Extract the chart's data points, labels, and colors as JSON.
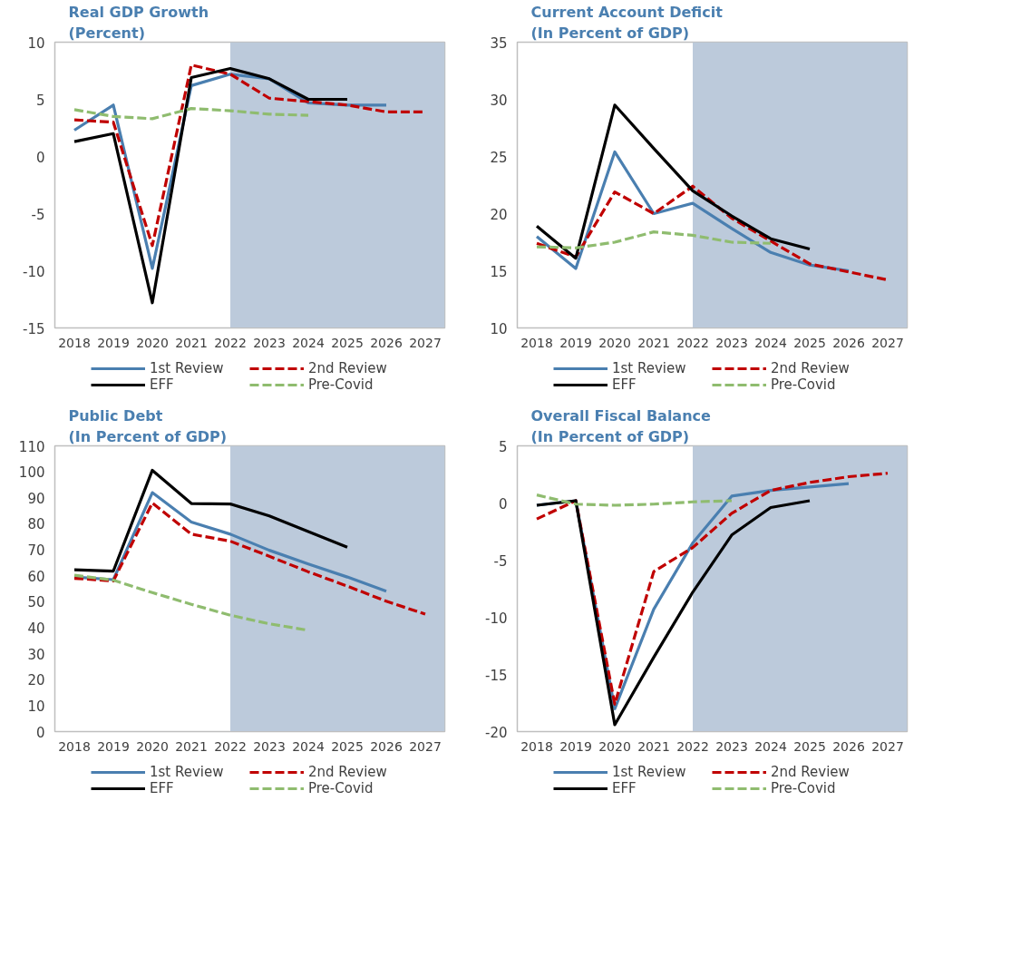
{
  "chart_data": [
    {
      "type": "line",
      "title": "Real GDP Growth",
      "subtitle": "(Percent)",
      "x": [
        2018,
        2019,
        2020,
        2021,
        2022,
        2023,
        2024,
        2025,
        2026,
        2027
      ],
      "xlim": [
        2017.5,
        2027.5
      ],
      "xticks": [
        2018,
        2019,
        2020,
        2021,
        2022,
        2023,
        2024,
        2025,
        2026,
        2027
      ],
      "ylim": [
        -15,
        10
      ],
      "yticks": [
        -15,
        -10,
        -5,
        0,
        5,
        10
      ],
      "grid": false,
      "legend": "bottom",
      "bands": [
        {
          "axis": "x",
          "from": 2022,
          "to": 2027.5,
          "color": "#bccadb"
        }
      ],
      "series": [
        {
          "name": "1st Review",
          "color": "#4a7fb0",
          "line_style": "solid",
          "values": [
            2.3,
            4.5,
            -9.8,
            6.2,
            7.2,
            6.8,
            4.7,
            4.5,
            4.5,
            null
          ]
        },
        {
          "name": "2nd Review",
          "color": "#c00000",
          "line_style": "dashed",
          "values": [
            3.2,
            3.0,
            -7.8,
            8.0,
            7.2,
            5.1,
            4.8,
            4.5,
            3.9,
            3.9
          ]
        },
        {
          "name": "EFF",
          "color": "#000000",
          "line_style": "solid",
          "values": [
            1.3,
            2.0,
            -12.8,
            6.9,
            7.7,
            6.8,
            5.0,
            5.0,
            null,
            null
          ]
        },
        {
          "name": "Pre-Covid",
          "color": "#8fbc6f",
          "line_style": "dashed",
          "values": [
            4.1,
            3.5,
            3.3,
            4.2,
            4.0,
            3.7,
            3.6,
            null,
            null,
            null
          ]
        }
      ]
    },
    {
      "type": "line",
      "title": "Current Account Deficit",
      "subtitle": "(In Percent of GDP)",
      "x": [
        2018,
        2019,
        2020,
        2021,
        2022,
        2023,
        2024,
        2025,
        2026,
        2027
      ],
      "xlim": [
        2017.5,
        2027.5
      ],
      "xticks": [
        2018,
        2019,
        2020,
        2021,
        2022,
        2023,
        2024,
        2025,
        2026,
        2027
      ],
      "ylim": [
        10,
        35
      ],
      "yticks": [
        10,
        15,
        20,
        25,
        30,
        35
      ],
      "grid": false,
      "legend": "bottom",
      "bands": [
        {
          "axis": "x",
          "from": 2022,
          "to": 2027.5,
          "color": "#bccadb"
        }
      ],
      "series": [
        {
          "name": "1st Review",
          "color": "#4a7fb0",
          "line_style": "solid",
          "values": [
            18.0,
            15.2,
            25.4,
            20.0,
            20.9,
            18.7,
            16.6,
            15.5,
            15.0,
            null
          ]
        },
        {
          "name": "2nd Review",
          "color": "#c00000",
          "line_style": "dashed",
          "values": [
            17.4,
            16.2,
            21.9,
            20.0,
            22.4,
            19.6,
            17.6,
            15.6,
            14.9,
            14.2
          ]
        },
        {
          "name": "EFF",
          "color": "#000000",
          "line_style": "solid",
          "values": [
            18.9,
            16.1,
            29.5,
            25.7,
            22.0,
            19.8,
            17.8,
            16.9,
            null,
            null
          ]
        },
        {
          "name": "Pre-Covid",
          "color": "#8fbc6f",
          "line_style": "dashed",
          "values": [
            17.1,
            17.0,
            17.5,
            18.4,
            18.1,
            17.5,
            17.4,
            null,
            null,
            null
          ]
        }
      ]
    },
    {
      "type": "line",
      "title": "Public Debt",
      "subtitle": "(In Percent of GDP)",
      "x": [
        2018,
        2019,
        2020,
        2021,
        2022,
        2023,
        2024,
        2025,
        2026,
        2027
      ],
      "xlim": [
        2017.5,
        2027.5
      ],
      "xticks": [
        2018,
        2019,
        2020,
        2021,
        2022,
        2023,
        2024,
        2025,
        2026,
        2027
      ],
      "ylim": [
        0,
        110
      ],
      "yticks": [
        0,
        10,
        20,
        30,
        40,
        50,
        60,
        70,
        80,
        90,
        100,
        110
      ],
      "grid": false,
      "legend": "bottom",
      "bands": [
        {
          "axis": "x",
          "from": 2022,
          "to": 2027.5,
          "color": "#bccadb"
        }
      ],
      "series": [
        {
          "name": "1st Review",
          "color": "#4a7fb0",
          "line_style": "solid",
          "values": [
            59.5,
            58.5,
            92,
            80.7,
            76,
            69.8,
            64.5,
            59.5,
            54,
            null
          ]
        },
        {
          "name": "2nd Review",
          "color": "#c00000",
          "line_style": "dashed",
          "values": [
            59,
            58,
            88,
            76,
            73.3,
            67.5,
            61.5,
            56,
            50.2,
            45.2
          ]
        },
        {
          "name": "EFF",
          "color": "#000000",
          "line_style": "solid",
          "values": [
            62.3,
            61.8,
            100.6,
            87.8,
            87.6,
            83,
            77,
            71,
            null,
            null
          ]
        },
        {
          "name": "Pre-Covid",
          "color": "#8fbc6f",
          "line_style": "dashed",
          "values": [
            60.2,
            58.3,
            53.5,
            49,
            44.8,
            41.5,
            39,
            null,
            null,
            null
          ]
        }
      ]
    },
    {
      "type": "line",
      "title": "Overall Fiscal Balance",
      "subtitle": "(In Percent of GDP)",
      "x": [
        2018,
        2019,
        2020,
        2021,
        2022,
        2023,
        2024,
        2025,
        2026,
        2027
      ],
      "xlim": [
        2017.5,
        2027.5
      ],
      "xticks": [
        2018,
        2019,
        2020,
        2021,
        2022,
        2023,
        2024,
        2025,
        2026,
        2027
      ],
      "ylim": [
        -20,
        5
      ],
      "yticks": [
        -20,
        -15,
        -10,
        -5,
        0,
        5
      ],
      "grid": false,
      "legend": "bottom",
      "bands": [
        {
          "axis": "x",
          "from": 2022,
          "to": 2027.5,
          "color": "#bccadb"
        }
      ],
      "series": [
        {
          "name": "1st Review",
          "color": "#4a7fb0",
          "line_style": "solid",
          "values": [
            -0.2,
            0.2,
            -18.0,
            -9.3,
            -3.5,
            0.6,
            1.1,
            1.4,
            1.7,
            null
          ]
        },
        {
          "name": "2nd Review",
          "color": "#c00000",
          "line_style": "dashed",
          "values": [
            -1.4,
            0.2,
            -17.6,
            -6.0,
            -3.9,
            -0.9,
            1.1,
            1.8,
            2.3,
            2.6
          ]
        },
        {
          "name": "EFF",
          "color": "#000000",
          "line_style": "solid",
          "values": [
            -0.2,
            0.2,
            -19.4,
            -13.5,
            -7.8,
            -2.8,
            -0.4,
            0.2,
            null,
            null
          ]
        },
        {
          "name": "Pre-Covid",
          "color": "#8fbc6f",
          "line_style": "dashed",
          "values": [
            0.7,
            -0.1,
            -0.2,
            -0.1,
            0.1,
            0.2,
            null,
            null,
            null,
            null
          ]
        }
      ]
    }
  ]
}
